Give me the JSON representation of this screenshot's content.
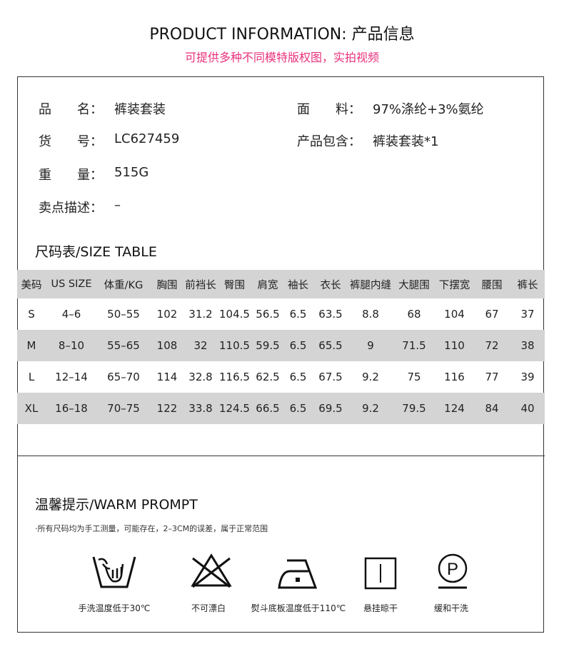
{
  "header": {
    "title": "PRODUCT INFORMATION: 产品信息",
    "subtitle": "可提供多种不同模特版权图，实拍视频"
  },
  "info": {
    "name_label": "品　　名：",
    "name_value": "裤装套装",
    "fabric_label": "面　　料：",
    "fabric_value": "97%涤纶+3%氨纶",
    "sku_label": "货　　号：",
    "sku_value": "LC627459",
    "includes_label": "产品包含：",
    "includes_value": "裤装套装*1",
    "weight_label": "重　　量：",
    "weight_value": "515G",
    "selling_label": "卖点描述：",
    "selling_value": "–"
  },
  "size_table": {
    "title": "尺码表/SIZE TABLE",
    "headers": [
      "美码",
      "US SIZE",
      "体重/KG",
      "胸围",
      "前裆长",
      "臀围",
      "肩宽",
      "袖长",
      "衣长",
      "裤腿内缝",
      "大腿围",
      "下摆宽",
      "腰围",
      "裤长"
    ],
    "rows": [
      [
        "S",
        "4–6",
        "50–55",
        "102",
        "31.2",
        "104.5",
        "56.5",
        "6.5",
        "63.5",
        "8.8",
        "68",
        "104",
        "67",
        "37"
      ],
      [
        "M",
        "8–10",
        "55–65",
        "108",
        "32",
        "110.5",
        "59.5",
        "6.5",
        "65.5",
        "9",
        "71.5",
        "110",
        "72",
        "38"
      ],
      [
        "L",
        "12–14",
        "65–70",
        "114",
        "32.8",
        "116.5",
        "62.5",
        "6.5",
        "67.5",
        "9.2",
        "75",
        "116",
        "77",
        "39"
      ],
      [
        "XL",
        "16–18",
        "70–75",
        "122",
        "33.8",
        "124.5",
        "66.5",
        "6.5",
        "69.5",
        "9.2",
        "79.5",
        "124",
        "84",
        "40"
      ]
    ]
  },
  "prompt": {
    "title": "温馨提示/WARM PROMPT",
    "note": "·所有尺码均为手工测量，可能存在，2–3CM的误差，属于正常范围",
    "care": [
      {
        "icon": "hand-wash-icon",
        "label": "手洗温度低于30℃"
      },
      {
        "icon": "no-bleach-icon",
        "label": "不可漂白"
      },
      {
        "icon": "iron-low-icon",
        "label": "熨斗底板温度低于110℃"
      },
      {
        "icon": "hang-dry-icon",
        "label": "悬挂晾干"
      },
      {
        "icon": "gentle-dry-clean-icon",
        "label": "缓和干洗"
      }
    ]
  },
  "colors": {
    "accent": "#e8307c",
    "row_gray": "#d4d4d4"
  }
}
